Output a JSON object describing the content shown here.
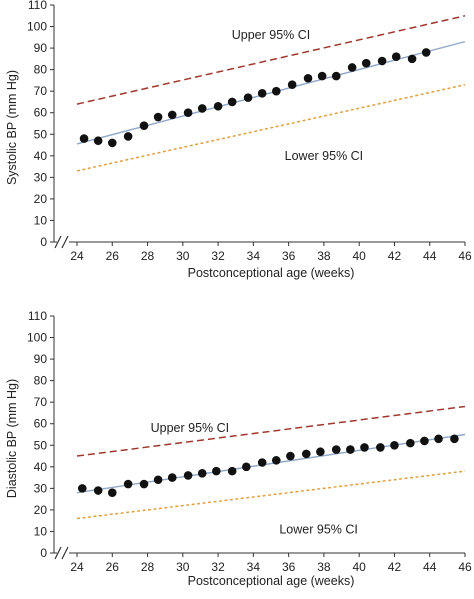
{
  "chart_data": [
    {
      "type": "scatter",
      "xlabel": "Postconceptional age (weeks)",
      "ylabel": "Systolic BP (mm Hg)",
      "xlim": [
        24,
        46
      ],
      "ylim": [
        0,
        110
      ],
      "xticks": [
        24,
        26,
        28,
        30,
        32,
        34,
        36,
        38,
        40,
        42,
        44,
        46
      ],
      "yticks": [
        0,
        10,
        20,
        30,
        40,
        50,
        60,
        70,
        80,
        90,
        100,
        110
      ],
      "axis_break": true,
      "grid": false,
      "points": {
        "x": [
          24.4,
          25.2,
          26.0,
          26.9,
          27.8,
          28.6,
          29.4,
          30.3,
          31.1,
          32.0,
          32.8,
          33.7,
          34.5,
          35.3,
          36.2,
          37.1,
          37.9,
          38.7,
          39.6,
          40.4,
          41.3,
          42.1,
          43.0,
          43.8
        ],
        "y": [
          48,
          47,
          46,
          49,
          54,
          58,
          59,
          60,
          62,
          63,
          65,
          67,
          69,
          70,
          73,
          76,
          77,
          77,
          81,
          83,
          84,
          86,
          85,
          88
        ]
      },
      "lines": [
        {
          "name": "Upper 95% CI",
          "style": "dashed",
          "color": "#a0382c",
          "x": [
            24,
            46
          ],
          "y": [
            64,
            105
          ]
        },
        {
          "name": "regression",
          "style": "solid",
          "color": "#8fa8c8",
          "x": [
            24,
            46
          ],
          "y": [
            45.5,
            93
          ]
        },
        {
          "name": "Lower 95% CI",
          "style": "dotted",
          "color": "#e0a040",
          "x": [
            24,
            46
          ],
          "y": [
            33,
            73
          ]
        }
      ],
      "annotations": [
        {
          "text": "Upper 95% CI",
          "x": 35.0,
          "y": 96
        },
        {
          "text": "Lower 95% CI",
          "x": 38.0,
          "y": 40
        }
      ]
    },
    {
      "type": "scatter",
      "xlabel": "Postconceptional age (weeks)",
      "ylabel": "Diastolic BP (mm Hg)",
      "xlim": [
        24,
        46
      ],
      "ylim": [
        0,
        110
      ],
      "xticks": [
        24,
        26,
        28,
        30,
        32,
        34,
        36,
        38,
        40,
        42,
        44,
        46
      ],
      "yticks": [
        0,
        10,
        20,
        30,
        40,
        50,
        60,
        70,
        80,
        90,
        100,
        110
      ],
      "axis_break": true,
      "grid": false,
      "points": {
        "x": [
          24.3,
          25.2,
          26.0,
          26.9,
          27.8,
          28.6,
          29.4,
          30.3,
          31.1,
          31.9,
          32.8,
          33.6,
          34.5,
          35.3,
          36.1,
          37.0,
          37.8,
          38.7,
          39.5,
          40.3,
          41.2,
          42.0,
          42.9,
          43.7,
          44.5,
          45.4
        ],
        "y": [
          30,
          29,
          28,
          32,
          32,
          34,
          35,
          36,
          37,
          38,
          38,
          40,
          42,
          43,
          45,
          46,
          47,
          48,
          48,
          49,
          49,
          50,
          51,
          52,
          53,
          53
        ]
      },
      "lines": [
        {
          "name": "Upper 95% CI",
          "style": "dashed",
          "color": "#a0382c",
          "x": [
            24,
            46
          ],
          "y": [
            45,
            68
          ]
        },
        {
          "name": "regression",
          "style": "solid",
          "color": "#8fa8c8",
          "x": [
            24,
            46
          ],
          "y": [
            28,
            55
          ]
        },
        {
          "name": "Lower 95% CI",
          "style": "dotted",
          "color": "#e0a040",
          "x": [
            24,
            46
          ],
          "y": [
            16,
            38
          ]
        }
      ],
      "annotations": [
        {
          "text": "Upper 95% CI",
          "x": 30.4,
          "y": 58
        },
        {
          "text": "Lower 95% CI",
          "x": 37.7,
          "y": 11
        }
      ]
    }
  ]
}
